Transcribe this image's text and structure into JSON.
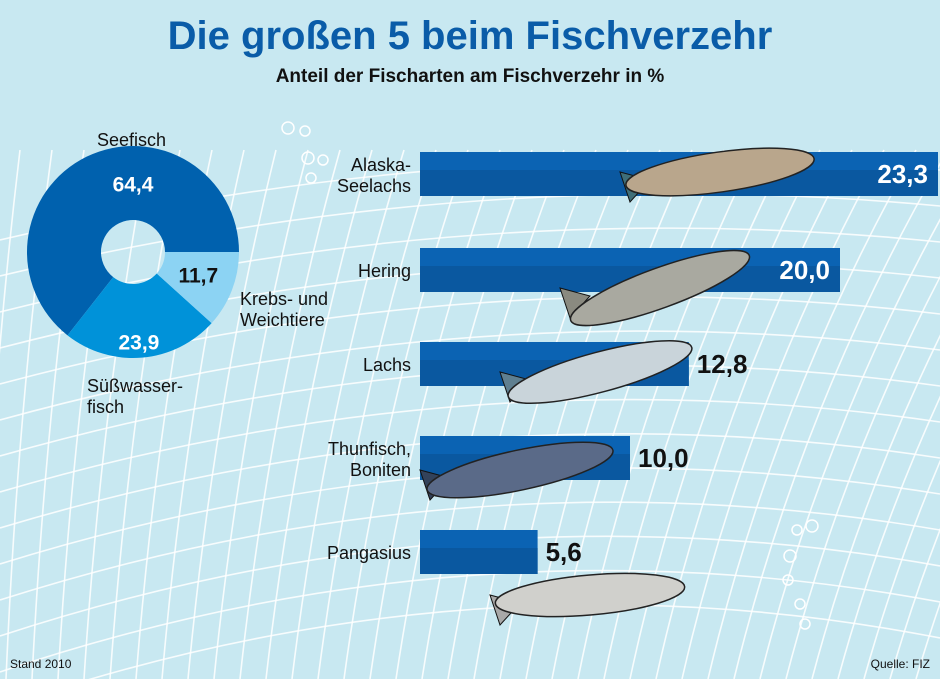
{
  "title": "Die großen 5 beim Fischverzehr",
  "subtitle": "Anteil der Fischarten am Fischverzehr in %",
  "footer": {
    "left": "Stand 2010",
    "right": "Quelle: FIZ"
  },
  "colors": {
    "background": "#c8e8f1",
    "bar": "#0b63b3",
    "bar_band": "#0a58a0",
    "seefisch": "#0061ae",
    "suesswasser": "#0092d9",
    "krebs": "#8cd3f3"
  },
  "chart_data": [
    {
      "type": "pie",
      "style": "donut",
      "categories": [
        "Seefisch",
        "Süßwasserfisch",
        "Krebs- und Weichtiere"
      ],
      "labels": {
        "seefisch": "Seefisch",
        "suesswasser_1": "Süßwasser-",
        "suesswasser_2": "fisch",
        "krebs_1": "Krebs- und",
        "krebs_2": "Weichtiere"
      },
      "values": [
        64.4,
        23.9,
        11.7
      ],
      "value_labels": [
        "64,4",
        "23,9",
        "11,7"
      ]
    },
    {
      "type": "bar",
      "orientation": "horizontal",
      "categories": [
        "Alaska-Seelachs",
        "Hering",
        "Lachs",
        "Thunfisch, Boniten",
        "Pangasius"
      ],
      "category_lines": [
        [
          "Alaska-",
          "Seelachs"
        ],
        [
          "Hering"
        ],
        [
          "Lachs"
        ],
        [
          "Thunfisch,",
          "Boniten"
        ],
        [
          "Pangasius"
        ]
      ],
      "values": [
        23.3,
        20.0,
        12.8,
        10.0,
        5.6
      ],
      "value_labels": [
        "23,3",
        "20,0",
        "12,8",
        "10,0",
        "5,6"
      ]
    }
  ]
}
